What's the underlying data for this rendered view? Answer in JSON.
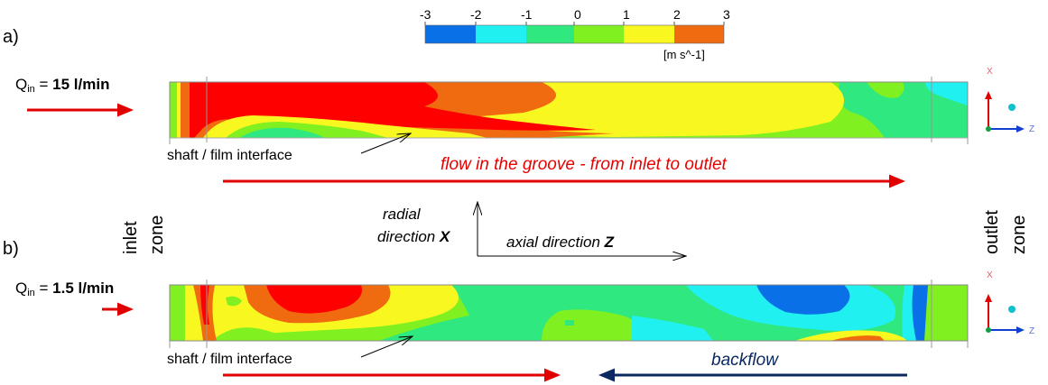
{
  "labels": {
    "panel_a": "a)",
    "panel_b": "b)",
    "q_label": "Q",
    "q_subscript": "in",
    "q_equals": " = ",
    "q_value_a": "15 l/min",
    "q_value_b": "1.5 l/min",
    "interface_a": "shaft / film interface",
    "interface_b": "shaft / film interface",
    "flow_groove": "flow in the groove - from inlet to outlet",
    "backflow": "backflow",
    "inlet": "inlet",
    "inlet_zone": "zone",
    "outlet": "outlet",
    "outlet_zone": "zone",
    "radial_1": "radial",
    "radial_2": "direction ",
    "radial_axis": "X",
    "axial": "axial direction ",
    "axial_axis": "Z",
    "triad_x": "X",
    "triad_z": "Z"
  },
  "colorbar": {
    "ticks": [
      "-3",
      "-2",
      "-1",
      "0",
      "1",
      "2",
      "3"
    ],
    "unit": "[m s^-1]",
    "colors": [
      "#0a70e8",
      "#20f0f0",
      "#30e880",
      "#80f020",
      "#f8f820",
      "#f06a10"
    ]
  },
  "colors": {
    "red_arrow": "#e00000",
    "backflow_arrow": "#0c2860",
    "flow_text": "#e80000",
    "backflow_text": "#0c2860",
    "velocity_max": "#ff0000",
    "velocity_min": "#0038d0"
  }
}
